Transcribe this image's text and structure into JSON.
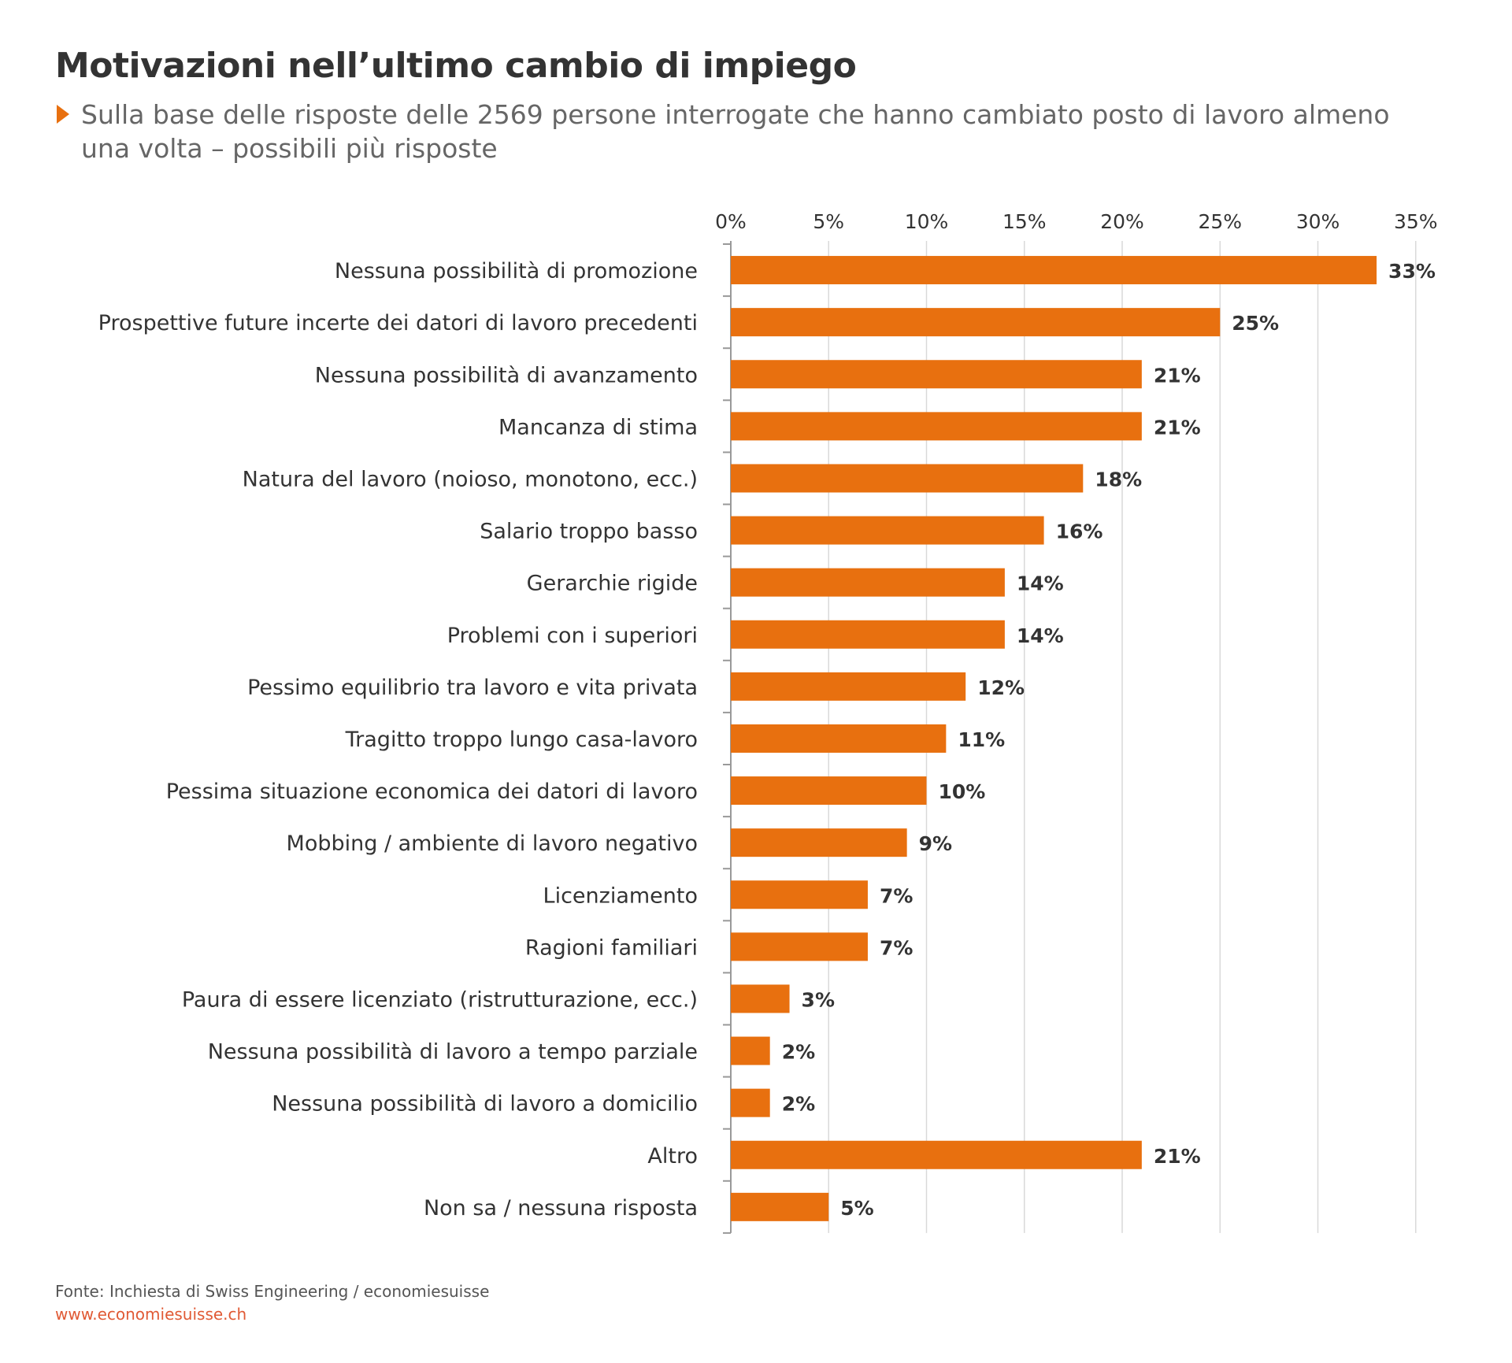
{
  "title": "Motivazioni nell’ultimo cambio di impiego",
  "subtitle": "Sulla base delle risposte delle 2569 persone interrogate che hanno cambiato posto di lavoro almeno una volta – possibili più risposte",
  "source": "Fonte: Inchiesta di Swiss Engineering / economiesuisse",
  "website": "www.economiesuisse.ch",
  "colors": {
    "bar": "#e8700f",
    "grid": "#d9d9d9",
    "axis": "#999999",
    "label": "#333333",
    "title": "#333333",
    "subtitle": "#666666",
    "accent": "#e8700f",
    "website": "#e05a35"
  },
  "chart_data": {
    "type": "bar",
    "orientation": "horizontal",
    "title": "",
    "xlabel": "",
    "ylabel": "",
    "xlim": [
      0,
      35
    ],
    "ticks": [
      "0%",
      "5%",
      "10%",
      "15%",
      "20%",
      "25%",
      "30%",
      "35%"
    ],
    "tick_values": [
      0,
      5,
      10,
      15,
      20,
      25,
      30,
      35
    ],
    "x_axis_position": "top",
    "grid": true,
    "categories": [
      "Nessuna possibilità di promozione",
      "Prospettive future incerte dei datori di lavoro precedenti",
      "Nessuna possibilità di avanzamento",
      "Mancanza di stima",
      "Natura del lavoro (noioso, monotono, ecc.)",
      "Salario troppo basso",
      "Gerarchie rigide",
      "Problemi con i superiori",
      "Pessimo equilibrio tra lavoro e vita privata",
      "Tragitto troppo lungo casa-lavoro",
      "Pessima situazione economica dei datori di lavoro",
      "Mobbing / ambiente di lavoro negativo",
      "Licenziamento",
      "Ragioni familiari",
      "Paura di essere licenziato (ristrutturazione, ecc.)",
      "Nessuna possibilità di lavoro a tempo parziale",
      "Nessuna possibilità di lavoro a domicilio",
      "Altro",
      "Non sa / nessuna risposta"
    ],
    "values": [
      33,
      25,
      21,
      21,
      18,
      16,
      14,
      14,
      12,
      11,
      10,
      9,
      7,
      7,
      3,
      2,
      2,
      21,
      5
    ],
    "value_labels": [
      "33%",
      "25%",
      "21%",
      "21%",
      "18%",
      "16%",
      "14%",
      "14%",
      "12%",
      "11%",
      "10%",
      "9%",
      "7%",
      "7%",
      "3%",
      "2%",
      "2%",
      "21%",
      "5%"
    ]
  }
}
